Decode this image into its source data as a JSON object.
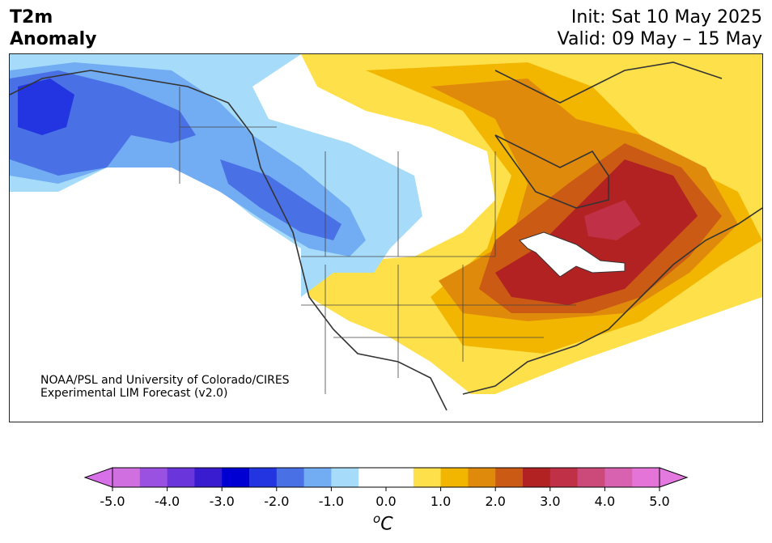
{
  "title": {
    "left_line1": "T2m",
    "left_line2": "Anomaly",
    "init": "Init: Sat 10 May 2025",
    "valid": "Valid: 09 May – 15 May"
  },
  "credit": {
    "line1": "NOAA/PSL and University of Colorado/CIRES",
    "line2": "Experimental LIM Forecast (v2.0)"
  },
  "colorbar": {
    "unit_base": "C",
    "unit_sup": "o",
    "tick_labels": [
      "-5.0",
      "-4.0",
      "-3.0",
      "-2.0",
      "-1.0",
      "0.0",
      "1.0",
      "2.0",
      "3.0",
      "4.0",
      "5.0"
    ],
    "colors": [
      "#d070e0",
      "#9a50e0",
      "#6a36dc",
      "#3a1cd0",
      "#0000d2",
      "#2235e0",
      "#4a70e6",
      "#72acf2",
      "#a6dbfa",
      "#ffffff",
      "#ffffff",
      "#fee04a",
      "#f2b600",
      "#e08a0c",
      "#ca5a14",
      "#b22222",
      "#c03046",
      "#cc4a7a",
      "#d862b0",
      "#e474d8"
    ],
    "under_color": "#d870ea",
    "over_color": "#e47ae0"
  },
  "map": {
    "region": "North America",
    "variable": "2 m temperature anomaly",
    "pattern": [
      {
        "area": "Alaska / Bering",
        "anomaly_c": -2.5,
        "color": "#2235e0"
      },
      {
        "area": "Alaska interior",
        "anomaly_c": -1.5,
        "color": "#4a70e6"
      },
      {
        "area": "Yukon / BC coast",
        "anomaly_c": -1.5,
        "color": "#4a70e6"
      },
      {
        "area": "Alberta / Saskatchewan",
        "anomaly_c": -0.8,
        "color": "#a6dbfa"
      },
      {
        "area": "Northern Plains / Montana",
        "anomaly_c": -0.8,
        "color": "#a6dbfa"
      },
      {
        "area": "Southwest / Texas",
        "anomaly_c": 0.8,
        "color": "#fee04a"
      },
      {
        "area": "Great Lakes",
        "anomaly_c": 3.0,
        "color": "#b22222"
      },
      {
        "area": "Quebec",
        "anomaly_c": 3.5,
        "color": "#c03046"
      },
      {
        "area": "Canadian Arctic / Nunavut",
        "anomaly_c": 2.0,
        "color": "#e08a0c"
      },
      {
        "area": "Southeast US",
        "anomaly_c": 1.5,
        "color": "#f2b600"
      }
    ]
  }
}
